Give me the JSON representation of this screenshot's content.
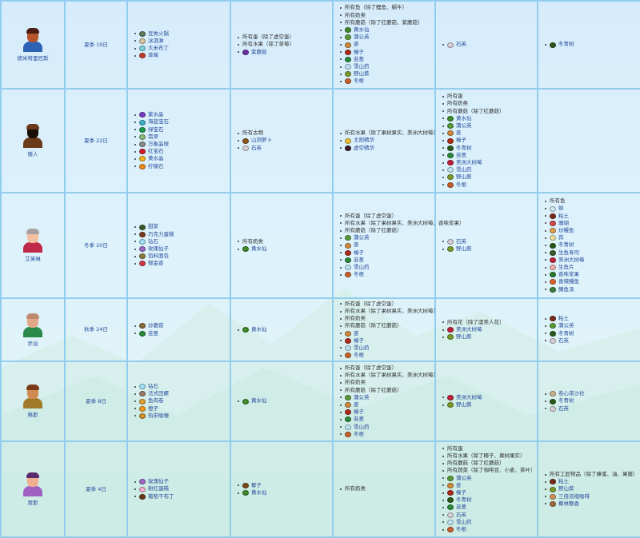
{
  "rows": [
    {
      "name": "德米特里厄斯",
      "birthday": "夏季 19日",
      "portrait": {
        "skin": "#b5542a",
        "hair": "#4a1c12",
        "body": "#2d63b5"
      },
      "loved": [
        {
          "t": "豆类火锅",
          "c": "#5a7a5a"
        },
        {
          "t": "冰淇淋",
          "c": "#d6c6a0"
        },
        {
          "t": "大米布丁",
          "c": "#7fd0d8"
        },
        {
          "t": "草莓",
          "c": "#c23a2a"
        }
      ],
      "liked": [
        {
          "t": "所有蛋",
          "n": "（除了虚空蛋）"
        },
        {
          "t": "所有水果",
          "n": "（除了草莓）"
        },
        {
          "t": "紫蘑菇",
          "c": "#6a2fa0"
        }
      ],
      "neutral": [
        {
          "t": "所有鱼",
          "n": "（除了鲤鱼、蜗牛）"
        },
        {
          "t": "所有奶类"
        },
        {
          "t": "所有蘑菇",
          "n": "（除了红蘑菇、紫蘑菇）"
        },
        {
          "t": "黄水仙",
          "c": "#3e8a2a"
        },
        {
          "t": "蒲公英",
          "c": "#5a9a3a"
        },
        {
          "t": "姜",
          "c": "#d08a3a"
        },
        {
          "t": "榛子",
          "c": "#b02a1a"
        },
        {
          "t": "韭葱",
          "c": "#2a8a3a"
        },
        {
          "t": "雪山药",
          "c": "#bfe3f2"
        },
        {
          "t": "野山葵",
          "c": "#7a9a2a"
        },
        {
          "t": "冬根",
          "c": "#c8602a"
        }
      ],
      "disliked": [
        {
          "t": "石英",
          "c": "#d8d0d8"
        }
      ],
      "hated": [
        {
          "t": "冬青树",
          "c": "#2a5a1a"
        }
      ]
    },
    {
      "name": "矮人",
      "birthday": "夏季 22日",
      "portrait": {
        "skin": "#1a0e08",
        "hair": "#6a3a1a",
        "body": "#6a3a1a"
      },
      "loved": [
        {
          "t": "紫水晶",
          "c": "#7a3ac0"
        },
        {
          "t": "海蓝宝石",
          "c": "#3ab0c8"
        },
        {
          "t": "绿宝石",
          "c": "#1a9a4a"
        },
        {
          "t": "翡翠",
          "c": "#8ab87a"
        },
        {
          "t": "万象晶球",
          "c": "#8a8a8a"
        },
        {
          "t": "红宝石",
          "c": "#d01a2a"
        },
        {
          "t": "黄水晶",
          "c": "#f0b020"
        },
        {
          "t": "柠檬石",
          "c": "#f08a1a"
        }
      ],
      "liked": [
        {
          "t": "所有古物"
        },
        {
          "t": "山洞萝卜",
          "c": "#8a5a1a"
        },
        {
          "t": "石英",
          "c": "#d8d0d8"
        }
      ],
      "neutral": [
        {
          "t": "所有水果",
          "n": "（除了果树果实、美洲大树莓）"
        },
        {
          "t": "太阳精华",
          "c": "#f0c030"
        },
        {
          "t": "虚空精华",
          "c": "#3a1a2a"
        }
      ],
      "disliked": [
        {
          "t": "所有蛋"
        },
        {
          "t": "所有奶类"
        },
        {
          "t": "所有蘑菇",
          "n": "（除了红蘑菇）"
        },
        {
          "t": "黄水仙",
          "c": "#3e8a2a"
        },
        {
          "t": "蒲公英",
          "c": "#5a9a3a"
        },
        {
          "t": "姜",
          "c": "#d08a3a"
        },
        {
          "t": "榛子",
          "c": "#b02a1a"
        },
        {
          "t": "冬青树",
          "c": "#2a5a1a"
        },
        {
          "t": "韭葱",
          "c": "#2a8a3a"
        },
        {
          "t": "美洲大树莓",
          "c": "#c0203a"
        },
        {
          "t": "雪山药",
          "c": "#bfe3f2"
        },
        {
          "t": "野山葵",
          "c": "#7a9a2a"
        },
        {
          "t": "冬根",
          "c": "#c8602a"
        }
      ],
      "hated": []
    },
    {
      "name": "艾芙琳",
      "birthday": "冬季 20日",
      "portrait": {
        "skin": "#f0c0a0",
        "hair": "#a8a0a0",
        "body": "#c02a4a"
      },
      "loved": [
        {
          "t": "甜菜",
          "c": "#3a5a2a"
        },
        {
          "t": "巧克力蛋糕",
          "c": "#7a3a1a"
        },
        {
          "t": "钻石",
          "c": "#a0e0f8"
        },
        {
          "t": "玫瑰仙子",
          "c": "#9a6ac0"
        },
        {
          "t": "馅料面包",
          "c": "#8a7a3a"
        },
        {
          "t": "郁金香",
          "c": "#d03a4a"
        }
      ],
      "liked": [
        {
          "t": "所有奶类"
        },
        {
          "t": "黄水仙",
          "c": "#3e8a2a"
        }
      ],
      "neutral": [
        {
          "t": "所有蛋",
          "n": "（除了虚空蛋）"
        },
        {
          "t": "所有水果",
          "n": "（除了果树果实、美洲大树莓、香味浆果）"
        },
        {
          "t": "所有蘑菇",
          "n": "（除了红蘑菇）"
        },
        {
          "t": "蒲公英",
          "c": "#5a9a3a"
        },
        {
          "t": "姜",
          "c": "#d08a3a"
        },
        {
          "t": "榛子",
          "c": "#b02a1a"
        },
        {
          "t": "韭葱",
          "c": "#2a8a3a"
        },
        {
          "t": "雪山药",
          "c": "#bfe3f2"
        },
        {
          "t": "冬根",
          "c": "#c8602a"
        }
      ],
      "disliked": [
        {
          "t": "石英",
          "c": "#d8d0d8"
        },
        {
          "t": "野山葵",
          "c": "#7a9a2a"
        }
      ],
      "hated": [
        {
          "t": "所有鱼"
        },
        {
          "t": "蛤",
          "c": "#cfe8f0"
        },
        {
          "t": "粘土",
          "c": "#7a2a1a"
        },
        {
          "t": "珊瑚",
          "c": "#d04a4a"
        },
        {
          "t": "炒鳗鱼",
          "c": "#e0a050"
        },
        {
          "t": "蒜",
          "c": "#f0e0a0"
        },
        {
          "t": "冬青树",
          "c": "#2a5a1a"
        },
        {
          "t": "生鱼寿司",
          "c": "#3a5a2a"
        },
        {
          "t": "美洲大树莓",
          "c": "#c0203a"
        },
        {
          "t": "生鱼片",
          "c": "#f0b0a8"
        },
        {
          "t": "香味浆果",
          "c": "#2a7a2a"
        },
        {
          "t": "香辣鳗鱼",
          "c": "#e06030"
        },
        {
          "t": "鳟鱼汤",
          "c": "#3a7a3a"
        }
      ]
    },
    {
      "name": "乔治",
      "birthday": "秋季 24日",
      "portrait": {
        "skin": "#e0a888",
        "hair": "#c08a70",
        "body": "#2a8a4a"
      },
      "loved": [
        {
          "t": "炒蘑菇",
          "c": "#8a6a3a"
        },
        {
          "t": "韭葱",
          "c": "#2a8a3a"
        }
      ],
      "liked": [
        {
          "t": "黄水仙",
          "c": "#3e8a2a"
        }
      ],
      "neutral": [
        {
          "t": "所有蛋",
          "n": "（除了虚空蛋）"
        },
        {
          "t": "所有水果",
          "n": "（除了果树果实、美洲大树莓）"
        },
        {
          "t": "所有奶类"
        },
        {
          "t": "所有蘑菇",
          "n": "（除了红蘑菇）"
        },
        {
          "t": "姜",
          "c": "#d08a3a"
        },
        {
          "t": "榛子",
          "c": "#b02a1a"
        },
        {
          "t": "雪山药",
          "c": "#bfe3f2"
        },
        {
          "t": "冬根",
          "c": "#c8602a"
        }
      ],
      "disliked": [
        {
          "t": "所有花",
          "n": "（除了虞美人花）"
        },
        {
          "t": "美洲大树莓",
          "c": "#c0203a"
        },
        {
          "t": "野山葵",
          "c": "#7a9a2a"
        }
      ],
      "hated": [
        {
          "t": "粘土",
          "c": "#7a2a1a"
        },
        {
          "t": "蒲公英",
          "c": "#5a9a3a"
        },
        {
          "t": "冬青树",
          "c": "#2a5a1a"
        },
        {
          "t": "石英",
          "c": "#d8d0d8"
        }
      ]
    },
    {
      "name": "格斯",
      "birthday": "夏季 8日",
      "portrait": {
        "skin": "#d08a50",
        "hair": "#7a3a1a",
        "body": "#a07a2a"
      },
      "loved": [
        {
          "t": "钻石",
          "c": "#a0e0f8"
        },
        {
          "t": "法式田螺",
          "c": "#9a7a6a"
        },
        {
          "t": "鱼肉卷",
          "c": "#e0a030"
        },
        {
          "t": "橙子",
          "c": "#f09a1a"
        },
        {
          "t": "热带咖喱",
          "c": "#d0902a"
        }
      ],
      "liked": [
        {
          "t": "黄水仙",
          "c": "#3e8a2a"
        }
      ],
      "neutral": [
        {
          "t": "所有蛋",
          "n": "（除了虚空蛋）"
        },
        {
          "t": "所有水果",
          "n": "（除了果树果实、美洲大树莓）"
        },
        {
          "t": "所有奶类"
        },
        {
          "t": "所有蘑菇",
          "n": "（除了红蘑菇）"
        },
        {
          "t": "蒲公英",
          "c": "#5a9a3a"
        },
        {
          "t": "姜",
          "c": "#d08a3a"
        },
        {
          "t": "榛子",
          "c": "#b02a1a"
        },
        {
          "t": "韭葱",
          "c": "#2a8a3a"
        },
        {
          "t": "雪山药",
          "c": "#bfe3f2"
        },
        {
          "t": "冬根",
          "c": "#c8602a"
        }
      ],
      "disliked": [
        {
          "t": "美洲大树莓",
          "c": "#c0203a"
        },
        {
          "t": "野山葵",
          "c": "#7a9a2a"
        }
      ],
      "hated": [
        {
          "t": "卷心菜沙拉",
          "c": "#c8b08a"
        },
        {
          "t": "冬青树",
          "c": "#2a5a1a"
        },
        {
          "t": "石英",
          "c": "#d8d0d8"
        }
      ]
    },
    {
      "name": "贾斯",
      "birthday": "夏季 4日",
      "portrait": {
        "skin": "#f0b090",
        "hair": "#5a2a6a",
        "body": "#a060c0"
      },
      "loved": [
        {
          "t": "玫瑰仙子",
          "c": "#9a6ac0"
        },
        {
          "t": "粉红蛋糕",
          "c": "#f0b0d0"
        },
        {
          "t": "葡萄干布丁",
          "c": "#6a3a1a"
        }
      ],
      "liked": [
        {
          "t": "椰子",
          "c": "#7a4a1a"
        },
        {
          "t": "黄水仙",
          "c": "#3e8a2a"
        }
      ],
      "neutral": [
        {
          "t": "所有奶类"
        }
      ],
      "disliked": [
        {
          "t": "所有蛋"
        },
        {
          "t": "所有水果",
          "n": "（除了椰子、果树果实）"
        },
        {
          "t": "所有蘑菇",
          "n": "（除了红蘑菇）"
        },
        {
          "t": "所有蔬菜",
          "n": "（除了咖啡豆、小麦、茶叶）"
        },
        {
          "t": "蒲公英",
          "c": "#5a9a3a"
        },
        {
          "t": "姜",
          "c": "#d08a3a"
        },
        {
          "t": "榛子",
          "c": "#b02a1a"
        },
        {
          "t": "冬青树",
          "c": "#2a5a1a"
        },
        {
          "t": "韭葱",
          "c": "#2a8a3a"
        },
        {
          "t": "石英",
          "c": "#d8d0d8"
        },
        {
          "t": "雪山药",
          "c": "#bfe3f2"
        },
        {
          "t": "冬根",
          "c": "#c8602a"
        }
      ],
      "hated": [
        {
          "t": "所有工匠物品",
          "n": "（除了蜂蜜、油、果酱）"
        },
        {
          "t": "粘土",
          "c": "#7a2a1a"
        },
        {
          "t": "野山葵",
          "c": "#7a9a2a"
        },
        {
          "t": "三倍浓缩咖啡",
          "c": "#d0905a"
        },
        {
          "t": "椰林飘香",
          "c": "#a06a3a"
        }
      ]
    }
  ]
}
